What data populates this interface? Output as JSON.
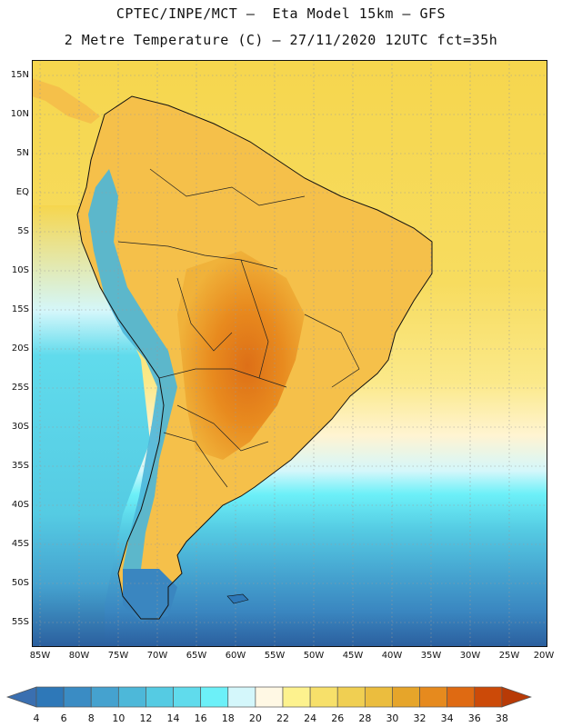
{
  "title": {
    "line1": "CPTEC/INPE/MCT –  Eta Model 15km – GFS",
    "line2": "2 Metre Temperature (C) – 27/11/2020 12UTC fct=35h"
  },
  "axes": {
    "lat_labels": [
      "15N",
      "10N",
      "5N",
      "EQ",
      "5S",
      "10S",
      "15S",
      "20S",
      "25S",
      "30S",
      "35S",
      "40S",
      "45S",
      "50S",
      "55S"
    ],
    "lon_labels": [
      "85W",
      "80W",
      "75W",
      "70W",
      "65W",
      "60W",
      "55W",
      "50W",
      "45W",
      "40W",
      "35W",
      "30W",
      "25W",
      "20W"
    ]
  },
  "colorbar": {
    "labels": [
      "4",
      "6",
      "8",
      "10",
      "12",
      "14",
      "16",
      "18",
      "20",
      "22",
      "24",
      "26",
      "28",
      "30",
      "32",
      "34",
      "36",
      "38"
    ],
    "colors": [
      "#3a6fb0",
      "#2e78b8",
      "#3a8cc4",
      "#45a2cf",
      "#4db8d9",
      "#55cbe3",
      "#60dbec",
      "#6cf0f8",
      "#d4f7fb",
      "#fff8e4",
      "#fdf28e",
      "#f7e06a",
      "#f0cf52",
      "#ebbd3e",
      "#e6a52a",
      "#e68a1e",
      "#df6a12",
      "#cc4a08",
      "#b83a06"
    ]
  },
  "map": {
    "land_colors": {
      "warm": "#f5c04a",
      "hot": "#e88a1e",
      "hotter": "#dd6f17",
      "mountain_cold": "#4bb6d9",
      "andes": "#6cdcf0"
    },
    "ocean_colors": {
      "tropic": "#f6d64e",
      "subtropic": "#fbe98a",
      "mid": "#d4f7fb",
      "cool": "#55cbe3",
      "cold": "#3a86c0",
      "colder": "#2b5f9e"
    }
  }
}
